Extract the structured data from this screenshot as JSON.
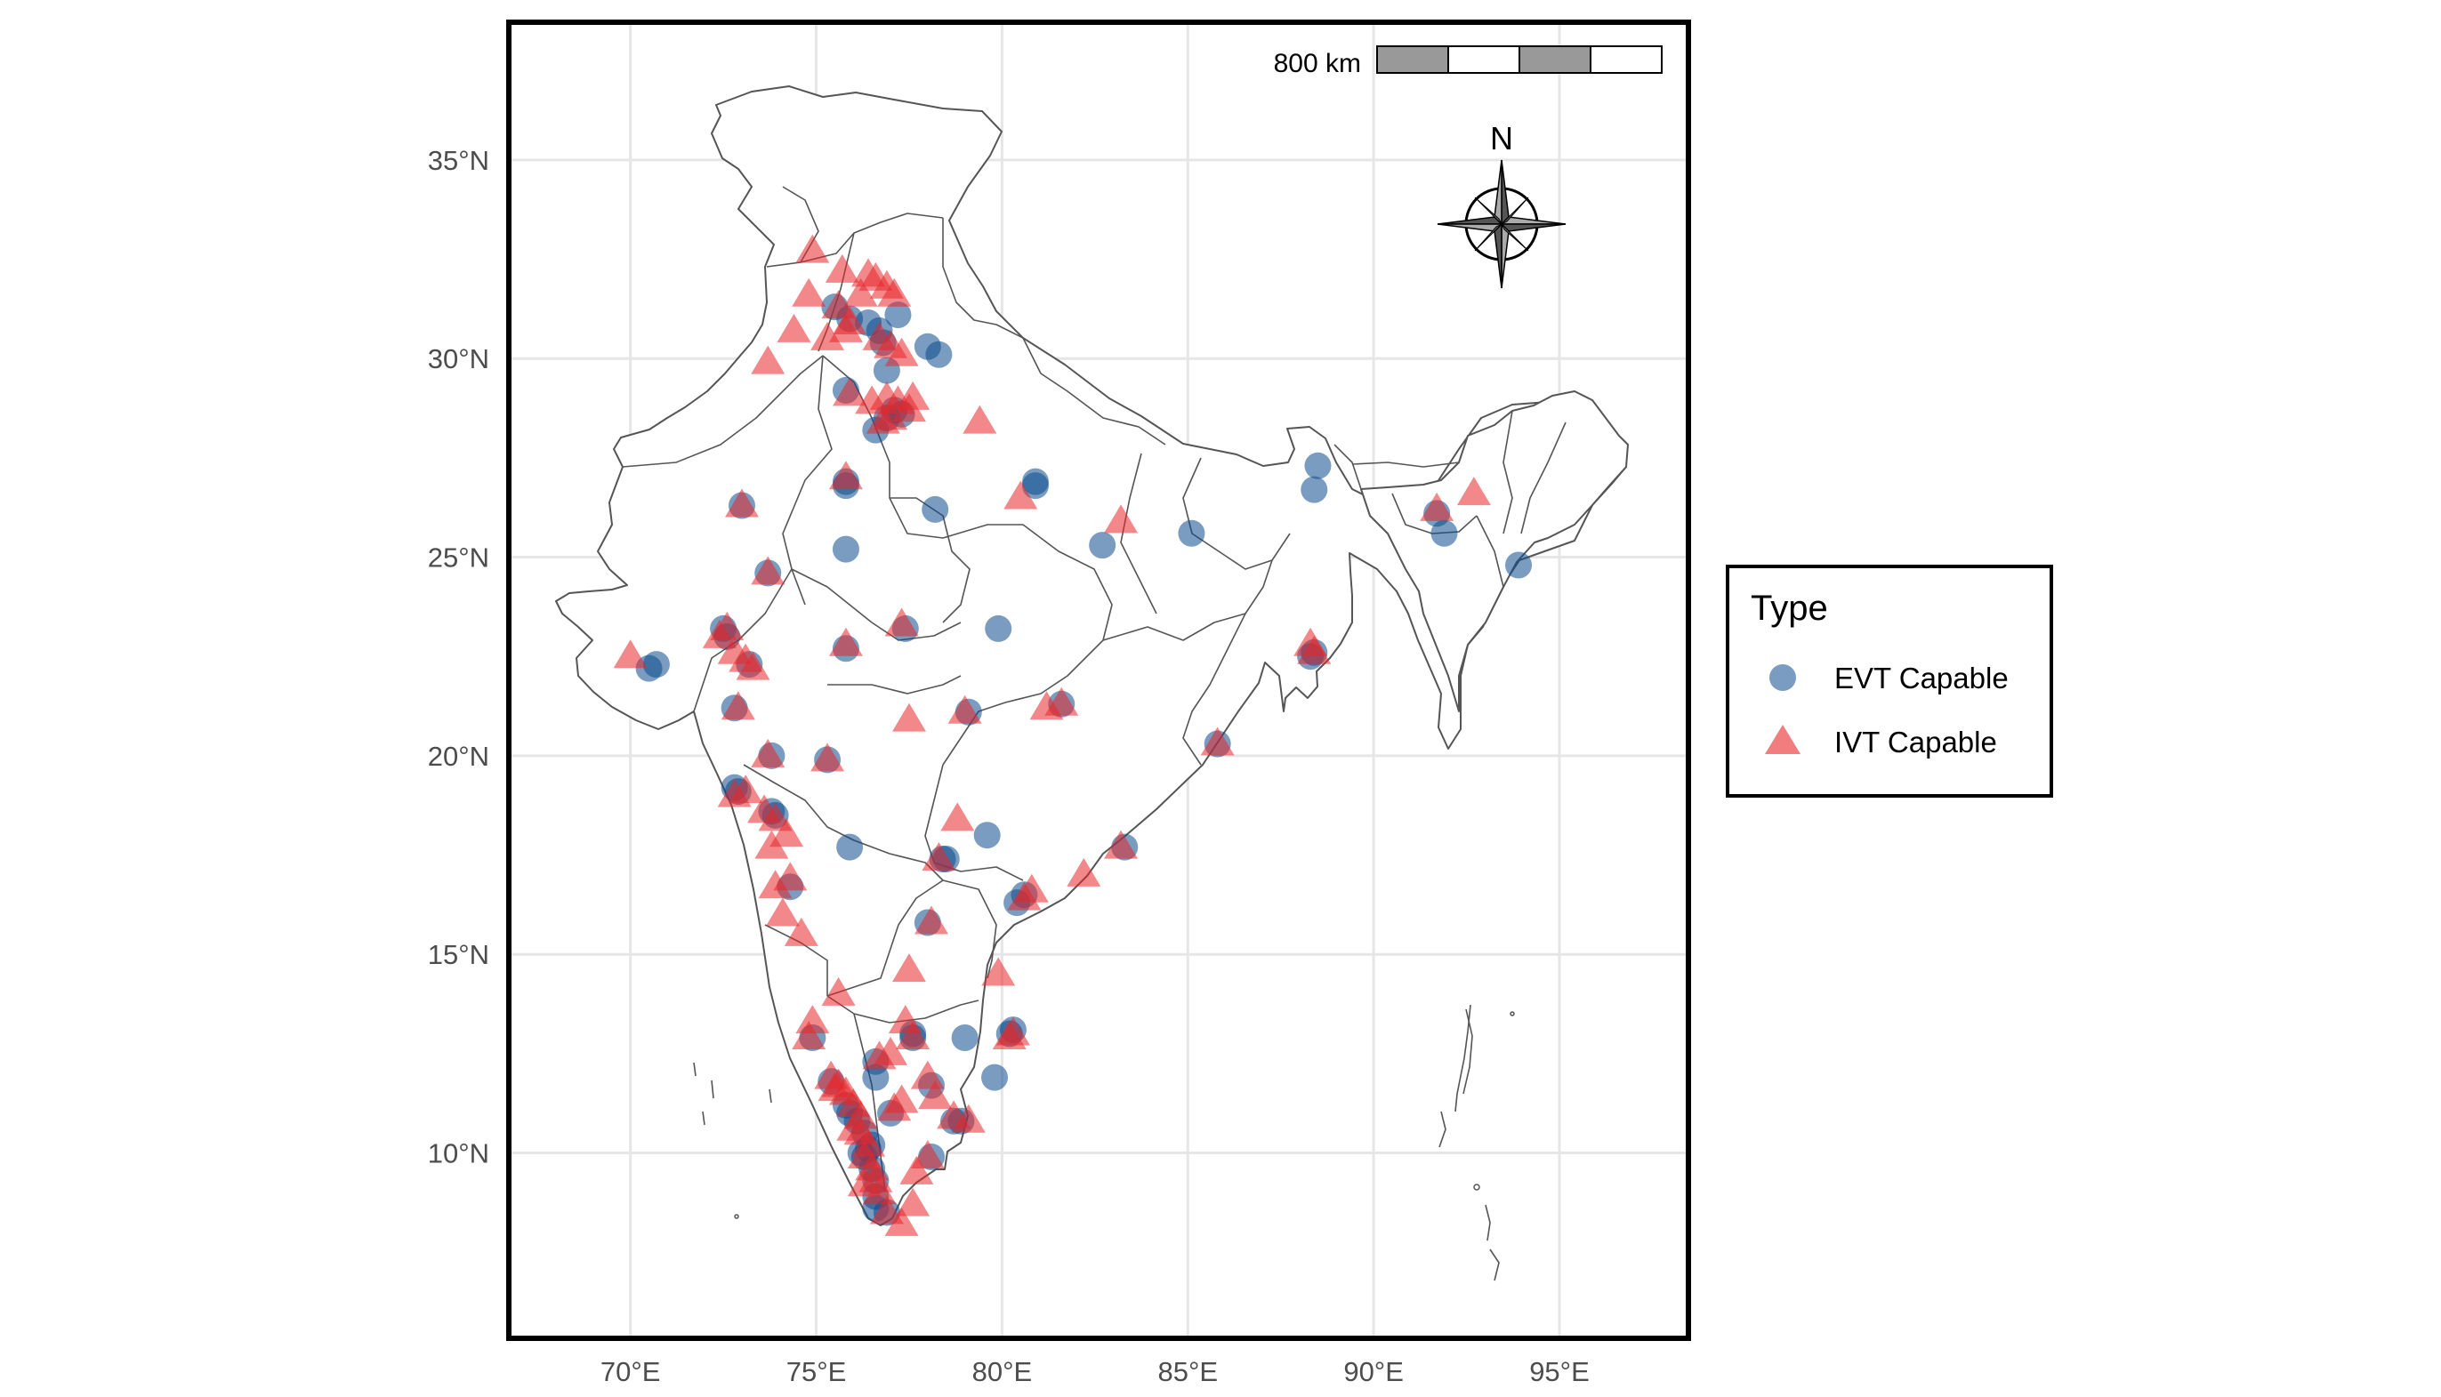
{
  "colors": {
    "evt": "#0b4a8c",
    "ivt": "#e8262a",
    "grid": "#e6e6e6",
    "border": "#000000",
    "region_stroke": "#555555"
  },
  "map": {
    "x_axis": {
      "ticks": [
        70,
        75,
        80,
        85,
        90,
        95
      ],
      "labels": [
        "70°E",
        "75°E",
        "80°E",
        "85°E",
        "90°E",
        "95°E"
      ]
    },
    "y_axis": {
      "ticks": [
        10,
        15,
        20,
        25,
        30,
        35
      ],
      "labels": [
        "10°N",
        "15°N",
        "20°N",
        "25°N",
        "30°N",
        "35°N"
      ]
    },
    "lon_range": [
      66.8,
      98.4
    ],
    "lat_range": [
      5.4,
      38.4
    ],
    "scale_bar": {
      "label": "800 km",
      "segments": 4
    },
    "north_arrow": {
      "label": "N",
      "icon": "compass-rose-icon"
    },
    "legend": {
      "title": "Type",
      "items": [
        {
          "label": "EVT Capable",
          "shape": "circle",
          "key": "evt"
        },
        {
          "label": "IVT Capable",
          "shape": "triangle",
          "key": "ivt"
        }
      ]
    }
  },
  "points": {
    "evt": [
      [
        75.5,
        31.3
      ],
      [
        75.9,
        31.0
      ],
      [
        76.4,
        30.9
      ],
      [
        76.7,
        30.7
      ],
      [
        77.2,
        31.1
      ],
      [
        76.8,
        30.4
      ],
      [
        78.0,
        30.3
      ],
      [
        78.3,
        30.1
      ],
      [
        75.8,
        29.2
      ],
      [
        76.9,
        29.7
      ],
      [
        77.1,
        28.7
      ],
      [
        76.9,
        28.5
      ],
      [
        76.6,
        28.2
      ],
      [
        77.3,
        28.6
      ],
      [
        75.8,
        26.9
      ],
      [
        75.8,
        26.8
      ],
      [
        78.2,
        26.2
      ],
      [
        80.9,
        26.8
      ],
      [
        80.9,
        26.9
      ],
      [
        73.0,
        26.3
      ],
      [
        75.8,
        25.2
      ],
      [
        73.7,
        24.6
      ],
      [
        82.7,
        25.3
      ],
      [
        85.1,
        25.6
      ],
      [
        88.4,
        26.7
      ],
      [
        88.5,
        27.3
      ],
      [
        91.7,
        26.1
      ],
      [
        91.9,
        25.6
      ],
      [
        93.9,
        24.8
      ],
      [
        72.6,
        23.0
      ],
      [
        72.5,
        23.2
      ],
      [
        70.7,
        22.3
      ],
      [
        70.5,
        22.2
      ],
      [
        73.2,
        22.3
      ],
      [
        75.8,
        22.7
      ],
      [
        77.4,
        23.2
      ],
      [
        79.9,
        23.2
      ],
      [
        88.4,
        22.6
      ],
      [
        88.3,
        22.5
      ],
      [
        72.8,
        21.2
      ],
      [
        79.1,
        21.1
      ],
      [
        81.6,
        21.3
      ],
      [
        85.8,
        20.3
      ],
      [
        73.8,
        20.0
      ],
      [
        75.3,
        19.9
      ],
      [
        72.9,
        19.1
      ],
      [
        72.8,
        19.2
      ],
      [
        73.9,
        18.5
      ],
      [
        73.8,
        18.6
      ],
      [
        75.9,
        17.7
      ],
      [
        78.4,
        17.4
      ],
      [
        78.5,
        17.4
      ],
      [
        79.6,
        18.0
      ],
      [
        83.3,
        17.7
      ],
      [
        80.6,
        16.5
      ],
      [
        80.4,
        16.3
      ],
      [
        74.3,
        16.7
      ],
      [
        78.0,
        15.8
      ],
      [
        74.9,
        12.9
      ],
      [
        77.6,
        13.0
      ],
      [
        77.6,
        12.9
      ],
      [
        76.6,
        12.3
      ],
      [
        76.6,
        11.9
      ],
      [
        79.0,
        12.9
      ],
      [
        80.3,
        13.1
      ],
      [
        80.2,
        13.0
      ],
      [
        79.8,
        11.9
      ],
      [
        78.1,
        11.7
      ],
      [
        77.0,
        11.0
      ],
      [
        78.7,
        10.8
      ],
      [
        78.9,
        10.8
      ],
      [
        78.1,
        9.9
      ],
      [
        76.3,
        10.5
      ],
      [
        76.2,
        10.0
      ],
      [
        76.3,
        9.9
      ],
      [
        76.5,
        9.6
      ],
      [
        76.6,
        9.3
      ],
      [
        76.6,
        8.9
      ],
      [
        76.9,
        8.5
      ],
      [
        76.6,
        8.6
      ],
      [
        75.8,
        11.2
      ],
      [
        76.1,
        10.8
      ],
      [
        75.4,
        11.8
      ],
      [
        76.4,
        10.1
      ],
      [
        76.5,
        10.2
      ],
      [
        75.9,
        11.0
      ]
    ],
    "ivt": [
      [
        74.9,
        32.7
      ],
      [
        74.8,
        31.6
      ],
      [
        75.6,
        31.3
      ],
      [
        75.9,
        30.9
      ],
      [
        76.2,
        31.6
      ],
      [
        76.4,
        32.1
      ],
      [
        76.6,
        32.0
      ],
      [
        76.9,
        31.8
      ],
      [
        77.1,
        31.6
      ],
      [
        75.7,
        32.2
      ],
      [
        74.4,
        30.7
      ],
      [
        75.3,
        30.5
      ],
      [
        75.8,
        30.7
      ],
      [
        76.7,
        30.5
      ],
      [
        77.0,
        30.3
      ],
      [
        77.3,
        30.1
      ],
      [
        73.7,
        29.9
      ],
      [
        75.9,
        29.1
      ],
      [
        76.5,
        28.9
      ],
      [
        76.9,
        29.0
      ],
      [
        77.2,
        28.9
      ],
      [
        77.5,
        28.7
      ],
      [
        77.6,
        29.0
      ],
      [
        79.4,
        28.4
      ],
      [
        76.8,
        28.4
      ],
      [
        77.0,
        28.5
      ],
      [
        75.8,
        27.0
      ],
      [
        73.0,
        26.3
      ],
      [
        80.5,
        26.5
      ],
      [
        83.2,
        25.9
      ],
      [
        73.7,
        24.6
      ],
      [
        72.6,
        23.2
      ],
      [
        72.4,
        23.0
      ],
      [
        70.0,
        22.5
      ],
      [
        72.8,
        22.6
      ],
      [
        73.1,
        22.4
      ],
      [
        73.3,
        22.2
      ],
      [
        75.8,
        22.8
      ],
      [
        77.3,
        23.3
      ],
      [
        77.5,
        20.9
      ],
      [
        79.0,
        21.1
      ],
      [
        81.2,
        21.2
      ],
      [
        81.6,
        21.3
      ],
      [
        85.8,
        20.3
      ],
      [
        88.4,
        22.6
      ],
      [
        88.3,
        22.8
      ],
      [
        92.7,
        26.6
      ],
      [
        91.7,
        26.2
      ],
      [
        72.9,
        21.2
      ],
      [
        73.7,
        20.0
      ],
      [
        75.3,
        19.9
      ],
      [
        72.8,
        19.0
      ],
      [
        73.1,
        19.1
      ],
      [
        73.6,
        18.6
      ],
      [
        73.9,
        18.4
      ],
      [
        74.2,
        18.0
      ],
      [
        73.8,
        17.7
      ],
      [
        74.3,
        16.9
      ],
      [
        73.9,
        16.7
      ],
      [
        74.1,
        16.0
      ],
      [
        74.6,
        15.5
      ],
      [
        75.6,
        14.0
      ],
      [
        78.3,
        17.4
      ],
      [
        78.8,
        18.4
      ],
      [
        80.8,
        16.6
      ],
      [
        80.6,
        16.4
      ],
      [
        82.2,
        17.0
      ],
      [
        83.2,
        17.7
      ],
      [
        78.1,
        15.8
      ],
      [
        77.5,
        14.6
      ],
      [
        79.9,
        14.5
      ],
      [
        74.9,
        13.3
      ],
      [
        74.8,
        12.9
      ],
      [
        77.4,
        13.3
      ],
      [
        77.6,
        12.9
      ],
      [
        80.3,
        13.0
      ],
      [
        80.2,
        12.9
      ],
      [
        76.7,
        12.4
      ],
      [
        75.4,
        11.9
      ],
      [
        75.6,
        11.7
      ],
      [
        75.8,
        11.5
      ],
      [
        76.0,
        11.2
      ],
      [
        76.2,
        10.9
      ],
      [
        77.1,
        11.1
      ],
      [
        78.0,
        11.9
      ],
      [
        78.2,
        11.4
      ],
      [
        77.3,
        11.3
      ],
      [
        78.7,
        10.9
      ],
      [
        79.1,
        10.8
      ],
      [
        76.2,
        10.5
      ],
      [
        76.4,
        10.2
      ],
      [
        76.3,
        9.9
      ],
      [
        76.5,
        9.6
      ],
      [
        76.6,
        9.3
      ],
      [
        76.3,
        9.2
      ],
      [
        76.7,
        9.0
      ],
      [
        76.9,
        8.5
      ],
      [
        77.3,
        8.2
      ],
      [
        77.6,
        8.7
      ],
      [
        77.7,
        9.5
      ],
      [
        78.0,
        9.9
      ],
      [
        75.5,
        11.6
      ],
      [
        76.0,
        10.6
      ],
      [
        77.0,
        12.5
      ]
    ]
  }
}
